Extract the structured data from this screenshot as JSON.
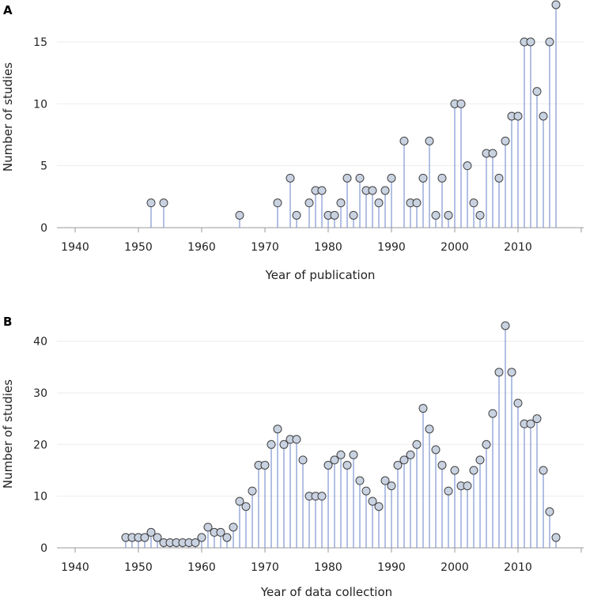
{
  "chart_data": [
    {
      "panel": "A",
      "type": "stem",
      "xlabel": "Year of publication",
      "ylabel": "Number of studies",
      "xlim": [
        1937.5,
        2020
      ],
      "ylim": [
        0,
        18
      ],
      "xticks": [
        1940,
        1950,
        1960,
        1970,
        1980,
        1990,
        2000,
        2010
      ],
      "yticks": [
        0,
        5,
        10,
        15
      ],
      "grid": true,
      "x": [
        1952,
        1954,
        1966,
        1972,
        1974,
        1975,
        1977,
        1978,
        1979,
        1980,
        1981,
        1982,
        1983,
        1984,
        1985,
        1986,
        1987,
        1988,
        1989,
        1990,
        1992,
        1993,
        1994,
        1995,
        1996,
        1997,
        1998,
        1999,
        2000,
        2001,
        2002,
        2003,
        2004,
        2005,
        2006,
        2007,
        2008,
        2009,
        2010,
        2011,
        2012,
        2013,
        2014,
        2015,
        2016
      ],
      "y": [
        2,
        2,
        1,
        2,
        4,
        1,
        2,
        3,
        3,
        1,
        1,
        2,
        4,
        1,
        4,
        3,
        3,
        2,
        3,
        4,
        7,
        2,
        2,
        4,
        7,
        1,
        4,
        1,
        10,
        10,
        5,
        2,
        1,
        6,
        6,
        4,
        7,
        9,
        9,
        15,
        15,
        11,
        9,
        15,
        18
      ]
    },
    {
      "panel": "B",
      "type": "stem",
      "xlabel": "Year of data collection",
      "ylabel": "Number of studies",
      "xlim": [
        1937.5,
        2020
      ],
      "ylim": [
        0,
        43
      ],
      "xticks": [
        1940,
        1950,
        1960,
        1970,
        1980,
        1990,
        2000,
        2010
      ],
      "yticks": [
        0,
        10,
        20,
        30,
        40
      ],
      "grid": true,
      "x": [
        1948,
        1949,
        1950,
        1951,
        1952,
        1953,
        1954,
        1955,
        1956,
        1957,
        1958,
        1959,
        1960,
        1961,
        1962,
        1963,
        1964,
        1965,
        1966,
        1967,
        1968,
        1969,
        1970,
        1971,
        1972,
        1973,
        1974,
        1975,
        1976,
        1977,
        1978,
        1979,
        1980,
        1981,
        1982,
        1983,
        1984,
        1985,
        1986,
        1987,
        1988,
        1989,
        1990,
        1991,
        1992,
        1993,
        1994,
        1995,
        1996,
        1997,
        1998,
        1999,
        2000,
        2001,
        2002,
        2003,
        2004,
        2005,
        2006,
        2007,
        2008,
        2009,
        2010,
        2011,
        2012,
        2013,
        2014,
        2015,
        2016
      ],
      "y": [
        2,
        2,
        2,
        2,
        3,
        2,
        1,
        1,
        1,
        1,
        1,
        1,
        2,
        4,
        3,
        3,
        2,
        4,
        9,
        8,
        11,
        16,
        16,
        20,
        23,
        20,
        21,
        21,
        17,
        10,
        10,
        10,
        16,
        17,
        18,
        16,
        18,
        13,
        11,
        9,
        8,
        13,
        12,
        16,
        17,
        18,
        20,
        27,
        23,
        19,
        16,
        11,
        15,
        12,
        12,
        15,
        17,
        20,
        26,
        34,
        43,
        34,
        28,
        24,
        24,
        25,
        15,
        7,
        2
      ]
    }
  ]
}
